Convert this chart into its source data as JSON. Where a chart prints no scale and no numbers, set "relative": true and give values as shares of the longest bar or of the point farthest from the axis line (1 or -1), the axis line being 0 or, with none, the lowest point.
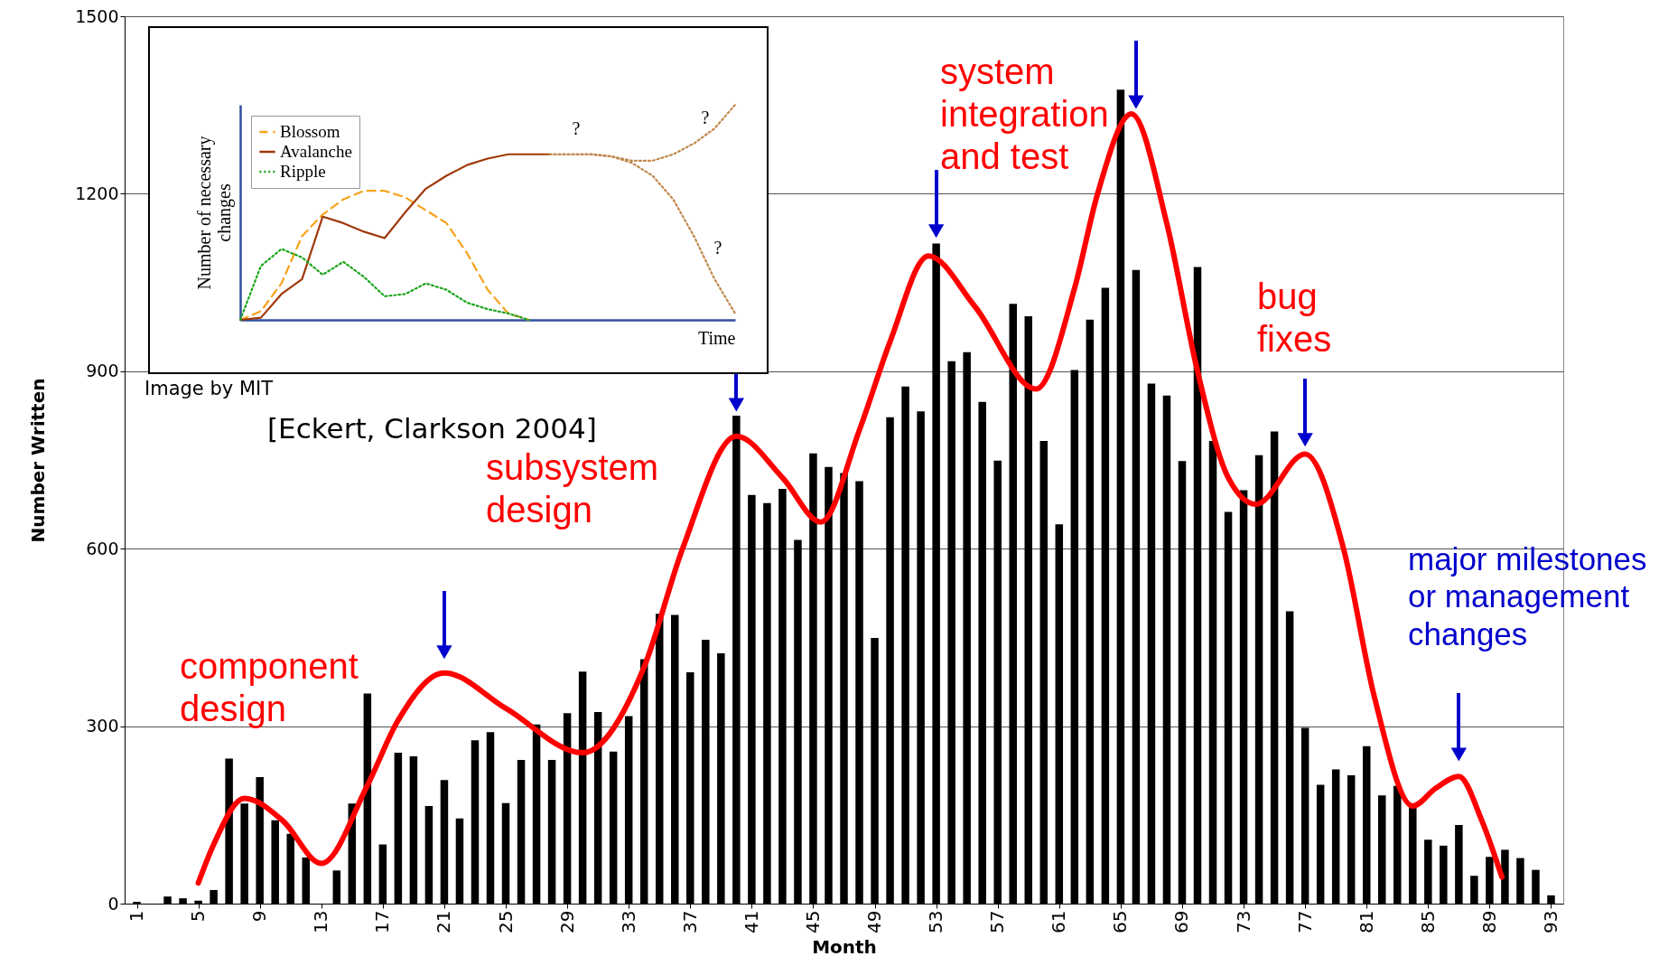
{
  "chart_data": [
    {
      "type": "bar",
      "xlabel": "Month",
      "ylabel": "Number Written",
      "x": [
        1,
        2,
        3,
        4,
        5,
        6,
        7,
        8,
        9,
        10,
        11,
        12,
        13,
        14,
        15,
        16,
        17,
        18,
        19,
        20,
        21,
        22,
        23,
        24,
        25,
        26,
        27,
        28,
        29,
        30,
        31,
        32,
        33,
        34,
        35,
        36,
        37,
        38,
        39,
        40,
        41,
        42,
        43,
        44,
        45,
        46,
        47,
        48,
        49,
        50,
        51,
        52,
        53,
        54,
        55,
        56,
        57,
        58,
        59,
        60,
        61,
        62,
        63,
        64,
        65,
        66,
        67,
        68,
        69,
        70,
        71,
        72,
        73,
        74,
        75,
        76,
        77,
        78,
        79,
        80,
        81,
        82,
        83,
        84,
        85,
        86,
        87,
        88,
        89,
        90,
        91,
        92,
        93
      ],
      "series": [
        {
          "color": "#000000",
          "values": [
            3,
            0,
            12,
            9,
            5,
            23,
            245,
            169,
            214,
            141,
            118,
            78,
            null,
            56,
            169,
            355,
            100,
            255,
            249,
            165,
            209,
            144,
            276,
            290,
            170,
            243,
            303,
            243,
            322,
            392,
            324,
            257,
            317,
            413,
            490,
            488,
            391,
            446,
            423,
            825,
            691,
            677,
            701,
            615,
            761,
            738,
            728,
            714,
            449,
            822,
            874,
            832,
            1116,
            917,
            932,
            848,
            749,
            1014,
            993,
            782,
            641,
            902,
            987,
            1041,
            1376,
            1071,
            879,
            859,
            748,
            1076,
            782,
            662,
            699,
            758,
            798,
            494,
            297,
            201,
            227,
            217,
            266,
            183,
            199,
            164,
            108,
            98,
            133,
            47,
            79,
            91,
            77,
            57,
            14
          ]
        },
        {
          "type": "line",
          "color": "#ff0000",
          "x": [
            5,
            6,
            8,
            10.5,
            13,
            16,
            18,
            21,
            25,
            30,
            34,
            36.5,
            40,
            43,
            45.5,
            48,
            50,
            52.5,
            55.5,
            59.5,
            62,
            63.5,
            65.7,
            68,
            70,
            72,
            73.8,
            77,
            79.5,
            81.5,
            84,
            85.5,
            87,
            88.5,
            89.8
          ],
          "values": [
            35,
            100,
            178,
            140,
            68,
            200,
            310,
            390,
            330,
            255,
            400,
            600,
            790,
            720,
            645,
            800,
            950,
            1095,
            1010,
            870,
            1040,
            1200,
            1335,
            1150,
            900,
            720,
            675,
            760,
            600,
            350,
            165,
            195,
            215,
            140,
            45
          ]
        },
        {
          "type": "scatter",
          "color": "#0000cc",
          "marker": "triangle",
          "x": [
            21,
            40,
            53,
            66,
            77,
            87
          ],
          "values": [
            425,
            843,
            1137,
            1355,
            784,
            252
          ]
        }
      ],
      "xlim": [
        0.5,
        93.5
      ],
      "xticks": [
        1,
        5,
        9,
        13,
        17,
        21,
        25,
        29,
        33,
        37,
        41,
        45,
        49,
        53,
        57,
        61,
        65,
        69,
        73,
        77,
        81,
        85,
        89,
        93
      ],
      "ylim": [
        0,
        1500
      ],
      "yticks": [
        0,
        300,
        600,
        900,
        1200,
        1500
      ],
      "grid": "y",
      "annotations": [
        "component\ndesign",
        "subsystem\ndesign",
        "system\nintegration\nand test",
        "bug\nfixes",
        "major milestones\nor management\nchanges",
        "Image by MIT",
        "[Eckert, Clarkson 2004]"
      ]
    },
    {
      "type": "line",
      "relative": true,
      "xlabel": "Time",
      "ylabel": "Number of necessary\nchanges",
      "legend": "top left",
      "categories": [
        null,
        null,
        null,
        null,
        null,
        null,
        null,
        null,
        null,
        null,
        null,
        null,
        null,
        null,
        null,
        null,
        null,
        null,
        null,
        null,
        null,
        null,
        null,
        null,
        null
      ],
      "series": [
        {
          "name": "Blossom",
          "color": "#f7a21b",
          "line_style": "dashed",
          "values": [
            0,
            0.04,
            0.17,
            0.39,
            0.49,
            0.56,
            0.6,
            0.6,
            0.57,
            0.51,
            0.45,
            0.31,
            0.14,
            0.03,
            0,
            null,
            null,
            null,
            null,
            null,
            null,
            null,
            null,
            null,
            null
          ]
        },
        {
          "name": "Avalanche",
          "color": "#a0380a",
          "line_style": "solid",
          "values": [
            0,
            0.01,
            0.12,
            0.19,
            0.48,
            0.45,
            0.41,
            0.38,
            0.5,
            0.61,
            0.67,
            0.72,
            0.75,
            0.77,
            0.77,
            0.77,
            null,
            null,
            null,
            null,
            null,
            null,
            null,
            null,
            null
          ]
        },
        {
          "name": "Ripple",
          "color": "#1aa51a",
          "line_style": "dotted",
          "values": [
            0,
            0.25,
            0.33,
            0.29,
            0.21,
            0.27,
            0.2,
            0.11,
            0.12,
            0.17,
            0.14,
            0.08,
            0.05,
            0.03,
            0,
            null,
            null,
            null,
            null,
            null,
            null,
            null,
            null,
            null,
            null
          ]
        },
        {
          "color": "#c0874a",
          "line_style": "dotted",
          "values": [
            null,
            null,
            null,
            null,
            null,
            null,
            null,
            null,
            null,
            null,
            null,
            null,
            null,
            null,
            null,
            0.77,
            0.77,
            0.77,
            0.76,
            0.74,
            0.74,
            0.77,
            0.82,
            0.89,
            1
          ]
        },
        {
          "color": "#c0874a",
          "line_style": "dotted",
          "values": [
            null,
            null,
            null,
            null,
            null,
            null,
            null,
            null,
            null,
            null,
            null,
            null,
            null,
            null,
            null,
            0.77,
            0.77,
            0.77,
            0.76,
            0.73,
            0.67,
            0.56,
            0.39,
            0.19,
            0.03
          ]
        }
      ],
      "annotations": [
        "?",
        "?",
        "?"
      ]
    }
  ]
}
